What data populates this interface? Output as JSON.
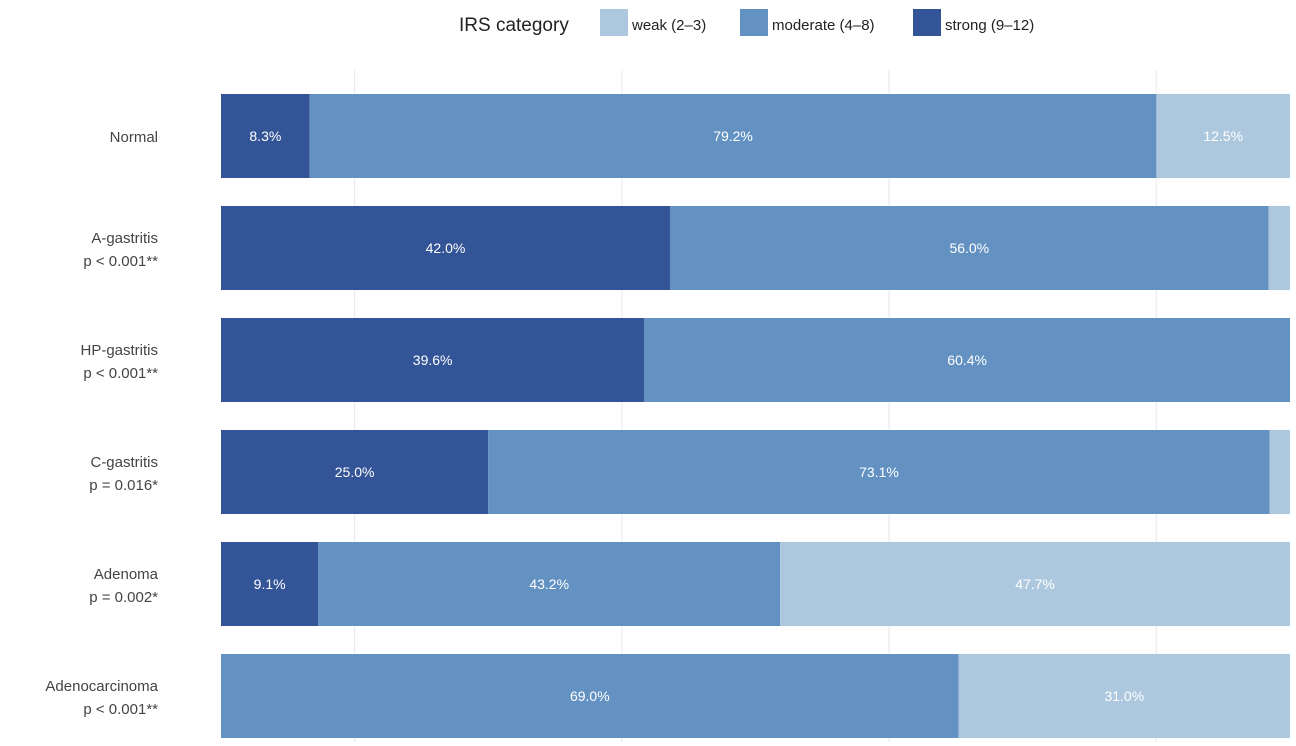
{
  "chart_data": {
    "type": "bar",
    "orientation": "horizontal",
    "stacked": true,
    "normalized_to_percent": true,
    "legend": {
      "title": "IRS category",
      "position": "top",
      "entries": [
        {
          "key": "weak",
          "label": "weak (2–3)",
          "color": "#adc8de"
        },
        {
          "key": "moderate",
          "label": "moderate (4–8)",
          "color": "#6392c2"
        },
        {
          "key": "strong",
          "label": "strong (9–12)",
          "color": "#345498"
        }
      ]
    },
    "stack_order": [
      "strong",
      "moderate",
      "weak"
    ],
    "grid": true,
    "xlim": [
      0,
      100
    ],
    "categories": [
      {
        "name": "Normal",
        "pvalue": ""
      },
      {
        "name": "A-gastritis",
        "pvalue": "p < 0.001**"
      },
      {
        "name": "HP-gastritis",
        "pvalue": "p < 0.001**"
      },
      {
        "name": "C-gastritis",
        "pvalue": "p = 0.016*"
      },
      {
        "name": "Adenoma",
        "pvalue": "p = 0.002*"
      },
      {
        "name": "Adenocarcinoma",
        "pvalue": "p < 0.001**"
      }
    ],
    "series": [
      {
        "key": "strong",
        "values": [
          8.3,
          42.0,
          39.6,
          25.0,
          9.1,
          0
        ],
        "labels": [
          "8.3%",
          "42.0%",
          "39.6%",
          "25.0%",
          "9.1%",
          ""
        ]
      },
      {
        "key": "moderate",
        "values": [
          79.2,
          56.0,
          60.4,
          73.1,
          43.2,
          69.0
        ],
        "labels": [
          "79.2%",
          "56.0%",
          "60.4%",
          "73.1%",
          "43.2%",
          "69.0%"
        ]
      },
      {
        "key": "weak",
        "values": [
          12.5,
          2.0,
          0,
          1.9,
          47.7,
          31.0
        ],
        "labels": [
          "12.5%",
          "",
          "",
          "",
          "47.7%",
          "31.0%"
        ]
      }
    ]
  }
}
